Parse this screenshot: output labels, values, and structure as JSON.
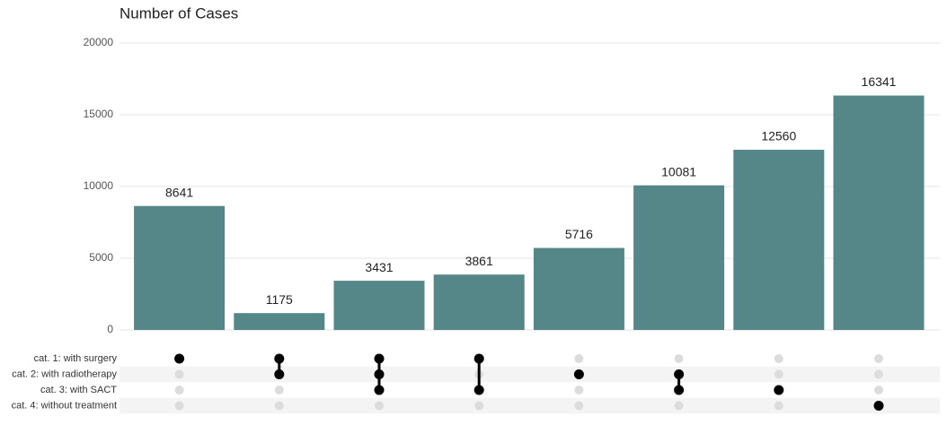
{
  "chart_data": {
    "type": "upset",
    "title": "Number of Cases",
    "values": [
      8641,
      1175,
      3431,
      3861,
      5716,
      10081,
      12560,
      16341
    ],
    "color": "#558789",
    "ylim": [
      0,
      20000
    ],
    "yticks": [
      0,
      5000,
      10000,
      15000,
      20000
    ],
    "grid": true,
    "sets": [
      "cat. 1: with surgery",
      "cat. 2: with radiotherapy",
      "cat. 3: with SACT",
      "cat. 4: without treatment"
    ],
    "combinations": [
      [
        0
      ],
      [
        0,
        1
      ],
      [
        0,
        1,
        2
      ],
      [
        0,
        2
      ],
      [
        1
      ],
      [
        1,
        2
      ],
      [
        2
      ],
      [
        3
      ]
    ]
  }
}
